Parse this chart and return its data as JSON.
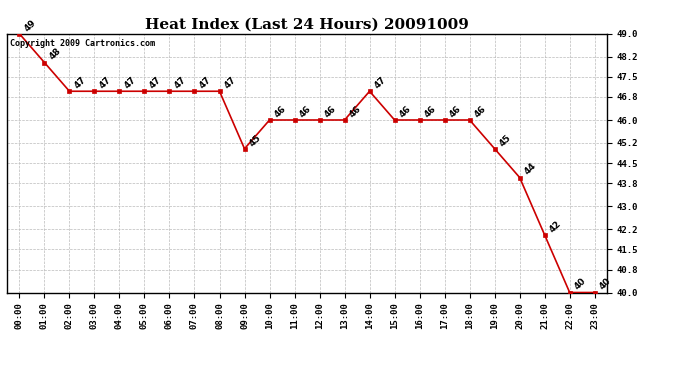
{
  "title": "Heat Index (Last 24 Hours) 20091009",
  "copyright": "Copyright 2009 Cartronics.com",
  "hours": [
    "00:00",
    "01:00",
    "02:00",
    "03:00",
    "04:00",
    "05:00",
    "06:00",
    "07:00",
    "08:00",
    "09:00",
    "10:00",
    "11:00",
    "12:00",
    "13:00",
    "14:00",
    "15:00",
    "16:00",
    "17:00",
    "18:00",
    "19:00",
    "20:00",
    "21:00",
    "22:00",
    "23:00"
  ],
  "values": [
    49,
    48,
    47,
    47,
    47,
    47,
    47,
    47,
    47,
    45,
    46,
    46,
    46,
    46,
    47,
    46,
    46,
    46,
    46,
    45,
    44,
    42,
    40,
    40
  ],
  "line_color": "#cc0000",
  "marker_color": "#cc0000",
  "bg_color": "#ffffff",
  "grid_color": "#bbbbbb",
  "ylim_min": 40.0,
  "ylim_max": 49.0,
  "yticks": [
    40.0,
    40.8,
    41.5,
    42.2,
    43.0,
    43.8,
    44.5,
    45.2,
    46.0,
    46.8,
    47.5,
    48.2,
    49.0
  ],
  "title_fontsize": 11,
  "label_fontsize": 6.5,
  "annotation_fontsize": 6.5,
  "copyright_fontsize": 6
}
